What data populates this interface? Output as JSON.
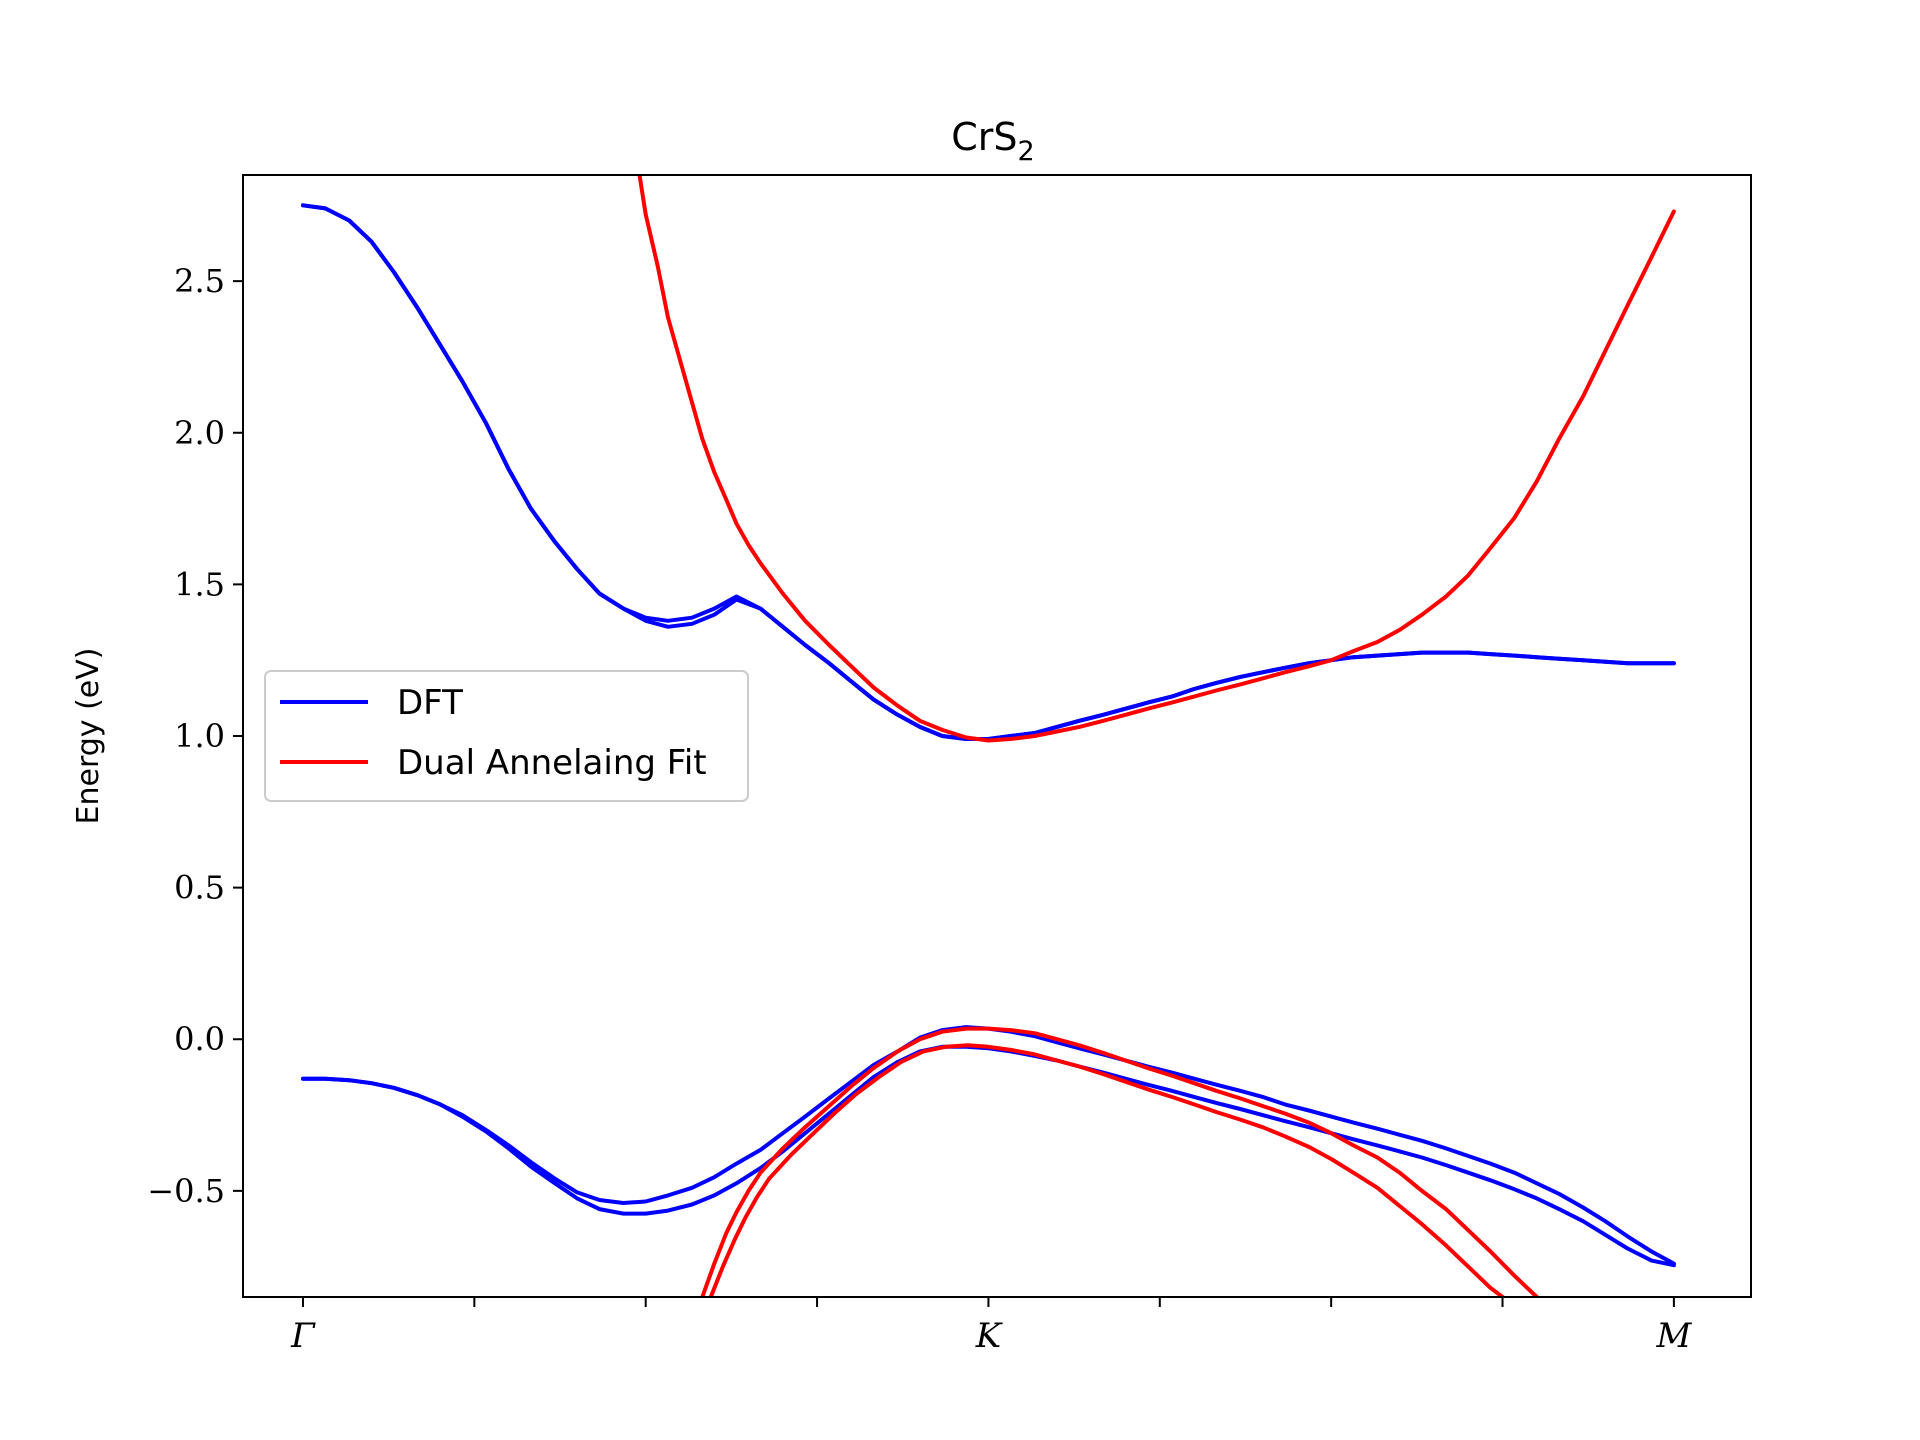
{
  "chart_data": {
    "type": "line",
    "title": "CrS",
    "title_subscript": "2",
    "xlabel": "",
    "ylabel": "Energy (eV)",
    "ylim": [
      -0.85,
      2.85
    ],
    "xlim": [
      -0.35,
      8.45
    ],
    "yticks": [
      -0.5,
      0.0,
      0.5,
      1.0,
      1.5,
      2.0,
      2.5
    ],
    "ytick_labels": [
      "−0.5",
      "0.0",
      "0.5",
      "1.0",
      "1.5",
      "2.0",
      "2.5"
    ],
    "xticks": [
      0,
      1,
      2,
      3,
      4,
      5,
      6,
      7,
      8
    ],
    "xtick_labels": [
      "Γ",
      "",
      "",
      "",
      "K",
      "",
      "",
      "",
      "M"
    ],
    "legend": {
      "location": "center-left",
      "entries": [
        {
          "label": "DFT",
          "color": "#0000ff"
        },
        {
          "label": "Dual Annelaing Fit",
          "color": "#ff0000"
        }
      ]
    },
    "series": [
      {
        "name": "DFT",
        "color": "#0000ff",
        "x": [
          0,
          0.13,
          0.27,
          0.4,
          0.53,
          0.67,
          0.8,
          0.93,
          1.07,
          1.2,
          1.33,
          1.47,
          1.6,
          1.73,
          1.87,
          2.0,
          2.13,
          2.27,
          2.4,
          2.53,
          2.67,
          2.8,
          2.93,
          3.07,
          3.2,
          3.33,
          3.47,
          3.6,
          3.73,
          3.87,
          4.0,
          4.13,
          4.27,
          4.4,
          4.53,
          4.67,
          4.8,
          4.93,
          5.07,
          5.2,
          5.33,
          5.47,
          5.6,
          5.73,
          5.87,
          6.0,
          6.13,
          6.27,
          6.4,
          6.53,
          6.67,
          6.8,
          6.93,
          7.07,
          7.2,
          7.33,
          7.47,
          7.6,
          7.73,
          7.87,
          8.0
        ],
        "y": [
          2.75,
          2.74,
          2.7,
          2.63,
          2.53,
          2.41,
          2.29,
          2.17,
          2.03,
          1.88,
          1.75,
          1.64,
          1.55,
          1.47,
          1.42,
          1.39,
          1.38,
          1.39,
          1.42,
          1.46,
          1.42,
          1.36,
          1.3,
          1.24,
          1.18,
          1.12,
          1.07,
          1.03,
          1.0,
          0.99,
          0.99,
          1.0,
          1.01,
          1.03,
          1.05,
          1.07,
          1.09,
          1.11,
          1.13,
          1.155,
          1.175,
          1.195,
          1.21,
          1.225,
          1.24,
          1.25,
          1.26,
          1.265,
          1.27,
          1.275,
          1.275,
          1.275,
          1.27,
          1.265,
          1.26,
          1.255,
          1.25,
          1.245,
          1.24,
          1.24,
          1.24
        ]
      },
      {
        "name": "DFT",
        "color": "#0000ff",
        "x": [
          0,
          0.13,
          0.27,
          0.4,
          0.53,
          0.67,
          0.8,
          0.93,
          1.07,
          1.2,
          1.33,
          1.47,
          1.6,
          1.73,
          1.87,
          2.0,
          2.13,
          2.27,
          2.4,
          2.53,
          2.67,
          2.8,
          2.93,
          3.07,
          3.2,
          3.33,
          3.47,
          3.6,
          3.73,
          3.87,
          4.0,
          4.13,
          4.27,
          4.4,
          4.53,
          4.67,
          4.8,
          4.93,
          5.07,
          5.2,
          5.33,
          5.47,
          5.6,
          5.73,
          5.87,
          6.0,
          6.13,
          6.27,
          6.4,
          6.53,
          6.67,
          6.8,
          6.93,
          7.07,
          7.2,
          7.33,
          7.47,
          7.6,
          7.73,
          7.87,
          8.0
        ],
        "y": [
          2.75,
          2.74,
          2.7,
          2.63,
          2.53,
          2.41,
          2.29,
          2.17,
          2.03,
          1.88,
          1.75,
          1.64,
          1.55,
          1.47,
          1.42,
          1.38,
          1.36,
          1.37,
          1.4,
          1.45,
          1.42,
          1.36,
          1.3,
          1.24,
          1.18,
          1.12,
          1.07,
          1.03,
          1.0,
          0.99,
          0.99,
          1.0,
          1.01,
          1.03,
          1.05,
          1.07,
          1.09,
          1.11,
          1.13,
          1.155,
          1.175,
          1.195,
          1.21,
          1.225,
          1.24,
          1.25,
          1.26,
          1.265,
          1.27,
          1.275,
          1.275,
          1.275,
          1.27,
          1.265,
          1.26,
          1.255,
          1.25,
          1.245,
          1.24,
          1.24,
          1.24
        ]
      },
      {
        "name": "DFT",
        "color": "#0000ff",
        "x": [
          0,
          0.13,
          0.27,
          0.4,
          0.53,
          0.67,
          0.8,
          0.93,
          1.07,
          1.2,
          1.33,
          1.47,
          1.6,
          1.73,
          1.87,
          2.0,
          2.13,
          2.27,
          2.4,
          2.53,
          2.67,
          2.8,
          2.93,
          3.07,
          3.2,
          3.33,
          3.47,
          3.6,
          3.73,
          3.87,
          4.0,
          4.13,
          4.27,
          4.4,
          4.53,
          4.67,
          4.8,
          4.93,
          5.07,
          5.2,
          5.33,
          5.47,
          5.6,
          5.73,
          5.87,
          6.0,
          6.13,
          6.27,
          6.4,
          6.53,
          6.67,
          6.8,
          6.93,
          7.07,
          7.2,
          7.33,
          7.47,
          7.6,
          7.73,
          7.87,
          8.0
        ],
        "y": [
          -0.13,
          -0.13,
          -0.135,
          -0.145,
          -0.16,
          -0.185,
          -0.215,
          -0.25,
          -0.3,
          -0.35,
          -0.405,
          -0.46,
          -0.505,
          -0.53,
          -0.54,
          -0.535,
          -0.515,
          -0.49,
          -0.455,
          -0.41,
          -0.365,
          -0.31,
          -0.255,
          -0.195,
          -0.14,
          -0.085,
          -0.04,
          0.005,
          0.03,
          0.04,
          0.035,
          0.025,
          0.01,
          -0.01,
          -0.03,
          -0.05,
          -0.07,
          -0.09,
          -0.11,
          -0.13,
          -0.15,
          -0.17,
          -0.19,
          -0.215,
          -0.235,
          -0.255,
          -0.275,
          -0.295,
          -0.315,
          -0.335,
          -0.36,
          -0.385,
          -0.41,
          -0.44,
          -0.475,
          -0.51,
          -0.555,
          -0.6,
          -0.65,
          -0.7,
          -0.74
        ]
      },
      {
        "name": "DFT",
        "color": "#0000ff",
        "x": [
          0,
          0.13,
          0.27,
          0.4,
          0.53,
          0.67,
          0.8,
          0.93,
          1.07,
          1.2,
          1.33,
          1.47,
          1.6,
          1.73,
          1.87,
          2.0,
          2.13,
          2.27,
          2.4,
          2.53,
          2.67,
          2.8,
          2.93,
          3.07,
          3.2,
          3.33,
          3.47,
          3.6,
          3.73,
          3.87,
          4.0,
          4.13,
          4.27,
          4.4,
          4.53,
          4.67,
          4.8,
          4.93,
          5.07,
          5.2,
          5.33,
          5.47,
          5.6,
          5.73,
          5.87,
          6.0,
          6.13,
          6.27,
          6.4,
          6.53,
          6.67,
          6.8,
          6.93,
          7.07,
          7.2,
          7.33,
          7.47,
          7.6,
          7.73,
          7.87,
          8.0
        ],
        "y": [
          -0.13,
          -0.13,
          -0.135,
          -0.145,
          -0.16,
          -0.185,
          -0.215,
          -0.255,
          -0.305,
          -0.36,
          -0.42,
          -0.475,
          -0.525,
          -0.56,
          -0.575,
          -0.575,
          -0.565,
          -0.545,
          -0.515,
          -0.475,
          -0.425,
          -0.37,
          -0.31,
          -0.245,
          -0.185,
          -0.125,
          -0.075,
          -0.04,
          -0.025,
          -0.025,
          -0.03,
          -0.04,
          -0.055,
          -0.07,
          -0.09,
          -0.11,
          -0.13,
          -0.15,
          -0.17,
          -0.19,
          -0.21,
          -0.23,
          -0.25,
          -0.27,
          -0.29,
          -0.31,
          -0.33,
          -0.35,
          -0.37,
          -0.39,
          -0.415,
          -0.44,
          -0.465,
          -0.495,
          -0.525,
          -0.56,
          -0.6,
          -0.645,
          -0.69,
          -0.73,
          -0.745
        ]
      },
      {
        "name": "Dual Annelaing Fit",
        "color": "#ff0000",
        "x": [
          1.95,
          2.0,
          2.07,
          2.13,
          2.2,
          2.27,
          2.33,
          2.4,
          2.47,
          2.53,
          2.6,
          2.67,
          2.8,
          2.93,
          3.07,
          3.2,
          3.33,
          3.47,
          3.6,
          3.73,
          3.87,
          4.0,
          4.13,
          4.27,
          4.4,
          4.53,
          4.67,
          4.8,
          4.93,
          5.07,
          5.2,
          5.33,
          5.47,
          5.6,
          5.73,
          5.87,
          6.0,
          6.13,
          6.27,
          6.4,
          6.53,
          6.67,
          6.8,
          6.93,
          7.07,
          7.2,
          7.33,
          7.47,
          7.6,
          7.73,
          7.87,
          8.0
        ],
        "y": [
          2.9,
          2.72,
          2.55,
          2.38,
          2.24,
          2.1,
          1.98,
          1.87,
          1.78,
          1.7,
          1.63,
          1.57,
          1.47,
          1.38,
          1.3,
          1.23,
          1.16,
          1.1,
          1.05,
          1.02,
          0.995,
          0.985,
          0.99,
          1.0,
          1.015,
          1.03,
          1.05,
          1.07,
          1.09,
          1.11,
          1.13,
          1.15,
          1.17,
          1.19,
          1.21,
          1.23,
          1.25,
          1.28,
          1.31,
          1.35,
          1.4,
          1.46,
          1.53,
          1.62,
          1.72,
          1.84,
          1.98,
          2.12,
          2.27,
          2.42,
          2.58,
          2.73
        ]
      },
      {
        "name": "Dual Annelaing Fit",
        "color": "#ff0000",
        "x": [
          2.33,
          2.4,
          2.47,
          2.53,
          2.6,
          2.67,
          2.8,
          2.93,
          3.07,
          3.2,
          3.33,
          3.47,
          3.6,
          3.73,
          3.87,
          4.0,
          4.13,
          4.27,
          4.4,
          4.53,
          4.67,
          4.8,
          4.93,
          5.07,
          5.2,
          5.33,
          5.47,
          5.6,
          5.73,
          5.87,
          6.0,
          6.13,
          6.27,
          6.4,
          6.53,
          6.67,
          6.8,
          6.93,
          7.07,
          7.2,
          7.27
        ],
        "y": [
          -0.85,
          -0.74,
          -0.64,
          -0.57,
          -0.5,
          -0.44,
          -0.36,
          -0.29,
          -0.22,
          -0.155,
          -0.095,
          -0.04,
          0.0,
          0.025,
          0.035,
          0.035,
          0.03,
          0.02,
          0.0,
          -0.02,
          -0.045,
          -0.07,
          -0.095,
          -0.12,
          -0.145,
          -0.17,
          -0.195,
          -0.22,
          -0.245,
          -0.275,
          -0.31,
          -0.35,
          -0.39,
          -0.44,
          -0.5,
          -0.56,
          -0.63,
          -0.7,
          -0.78,
          -0.85,
          -0.88
        ]
      },
      {
        "name": "Dual Annelaing Fit",
        "color": "#ff0000",
        "x": [
          2.38,
          2.45,
          2.52,
          2.58,
          2.65,
          2.72,
          2.85,
          2.98,
          3.1,
          3.23,
          3.36,
          3.49,
          3.62,
          3.75,
          3.88,
          4.0,
          4.13,
          4.27,
          4.4,
          4.53,
          4.67,
          4.8,
          4.93,
          5.07,
          5.2,
          5.33,
          5.47,
          5.6,
          5.73,
          5.87,
          6.0,
          6.13,
          6.27,
          6.4,
          6.53,
          6.67,
          6.8,
          6.93,
          7.07,
          7.2,
          7.27
        ],
        "y": [
          -0.85,
          -0.75,
          -0.66,
          -0.59,
          -0.52,
          -0.46,
          -0.38,
          -0.31,
          -0.245,
          -0.18,
          -0.125,
          -0.075,
          -0.04,
          -0.025,
          -0.02,
          -0.025,
          -0.035,
          -0.05,
          -0.07,
          -0.09,
          -0.115,
          -0.14,
          -0.165,
          -0.19,
          -0.215,
          -0.24,
          -0.265,
          -0.29,
          -0.32,
          -0.355,
          -0.395,
          -0.44,
          -0.49,
          -0.55,
          -0.61,
          -0.68,
          -0.75,
          -0.82,
          -0.88,
          -0.92,
          -0.94
        ]
      }
    ]
  }
}
